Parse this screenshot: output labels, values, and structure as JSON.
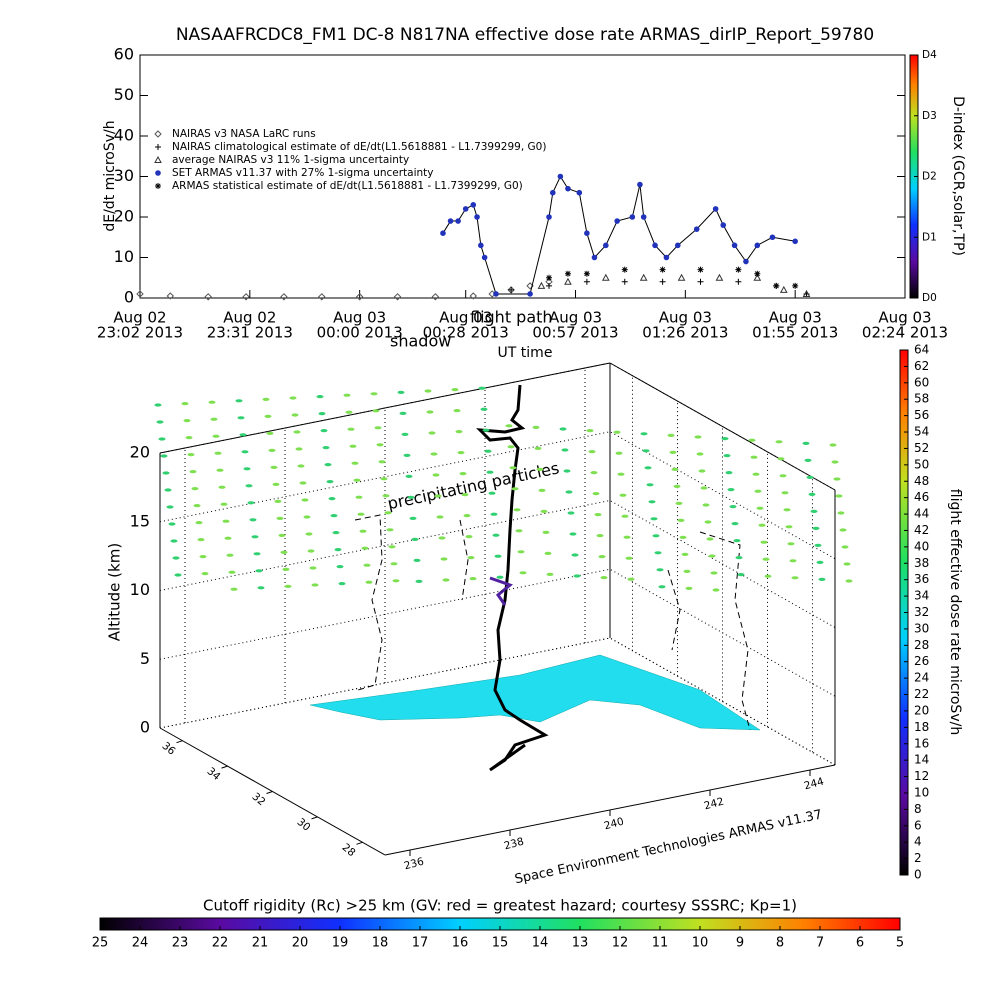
{
  "chart_data": [
    {
      "type": "line",
      "title": "NASAAFRCDC8_FM1 DC-8   N817NA effective dose rate ARMAS_dirIP_Report_59780",
      "ylabel": "dE/dt microSv/h",
      "xlabel": "UT time",
      "xlim": [
        "2013-08-02 23:02",
        "2013-08-03 02:24"
      ],
      "xticks": [
        {
          "value": "2013-08-02 23:02",
          "label": [
            "Aug 02",
            "23:02 2013"
          ]
        },
        {
          "value": "2013-08-02 23:31",
          "label": [
            "Aug 02",
            "23:31 2013"
          ]
        },
        {
          "value": "2013-08-03 00:00",
          "label": [
            "Aug 03",
            "00:00 2013"
          ]
        },
        {
          "value": "2013-08-03 00:28",
          "label": [
            "Aug 03",
            "00:28 2013"
          ]
        },
        {
          "value": "2013-08-03 00:57",
          "label": [
            "Aug 03",
            "00:57 2013"
          ]
        },
        {
          "value": "2013-08-03 01:26",
          "label": [
            "Aug 03",
            "01:26 2013"
          ]
        },
        {
          "value": "2013-08-03 01:55",
          "label": [
            "Aug 03",
            "01:55 2013"
          ]
        },
        {
          "value": "2013-08-03 02:24",
          "label": [
            "Aug 03",
            "02:24 2013"
          ]
        }
      ],
      "ylim": [
        0,
        60
      ],
      "yticks": [
        0,
        10,
        20,
        30,
        40,
        50,
        60
      ],
      "series": [
        {
          "name": "NAIRAS v3 NASA LaRC runs",
          "marker": "diamond",
          "color": "#555555",
          "x": [
            "2013-08-02 23:02",
            "2013-08-02 23:10",
            "2013-08-02 23:20",
            "2013-08-02 23:30",
            "2013-08-02 23:40",
            "2013-08-02 23:50",
            "2013-08-03 00:00",
            "2013-08-03 00:10",
            "2013-08-03 00:20",
            "2013-08-03 00:30",
            "2013-08-03 00:35",
            "2013-08-03 00:40",
            "2013-08-03 00:45",
            "2013-08-03 00:50"
          ],
          "values": [
            1,
            0.5,
            0.3,
            0.3,
            0.3,
            0.3,
            0.3,
            0.3,
            0.3,
            0.5,
            1,
            2,
            3,
            4
          ]
        },
        {
          "name": "NAIRAS climatological estimate of dE/dt(L1.5618881 - L1.7399299, G0)",
          "marker": "plus",
          "color": "#000000",
          "x": [
            "2013-08-03 00:40",
            "2013-08-03 00:50",
            "2013-08-03 01:00",
            "2013-08-03 01:10",
            "2013-08-03 01:20",
            "2013-08-03 01:30",
            "2013-08-03 01:40",
            "2013-08-03 01:50",
            "2013-08-03 01:58"
          ],
          "values": [
            2,
            3,
            4,
            4,
            4,
            4,
            4,
            3,
            1
          ]
        },
        {
          "name": "average NAIRAS v3 11% 1-sigma uncertainty",
          "marker": "triangle",
          "color": "#333333",
          "x": [
            "2013-08-03 00:48",
            "2013-08-03 00:55",
            "2013-08-03 01:05",
            "2013-08-03 01:15",
            "2013-08-03 01:25",
            "2013-08-03 01:35",
            "2013-08-03 01:45",
            "2013-08-03 01:52",
            "2013-08-03 01:58"
          ],
          "values": [
            3,
            4,
            5,
            5,
            5,
            5,
            5,
            2,
            1
          ]
        },
        {
          "name": "SET ARMAS v11.37 with 27% 1-sigma uncertainty",
          "marker": "dot",
          "color": "#2233bb",
          "x": [
            "2013-08-03 00:22",
            "2013-08-03 00:24",
            "2013-08-03 00:26",
            "2013-08-03 00:28",
            "2013-08-03 00:30",
            "2013-08-03 00:31",
            "2013-08-03 00:32",
            "2013-08-03 00:33",
            "2013-08-03 00:36",
            "2013-08-03 00:45",
            "2013-08-03 00:50",
            "2013-08-03 00:51",
            "2013-08-03 00:53",
            "2013-08-03 00:55",
            "2013-08-03 00:58",
            "2013-08-03 01:00",
            "2013-08-03 01:02",
            "2013-08-03 01:05",
            "2013-08-03 01:08",
            "2013-08-03 01:12",
            "2013-08-03 01:14",
            "2013-08-03 01:15",
            "2013-08-03 01:18",
            "2013-08-03 01:21",
            "2013-08-03 01:24",
            "2013-08-03 01:29",
            "2013-08-03 01:34",
            "2013-08-03 01:36",
            "2013-08-03 01:39",
            "2013-08-03 01:42",
            "2013-08-03 01:45",
            "2013-08-03 01:49",
            "2013-08-03 01:55"
          ],
          "values": [
            16,
            19,
            19,
            22,
            23,
            20,
            13,
            10,
            1,
            1,
            20,
            26,
            30,
            27,
            26,
            16,
            10,
            13,
            19,
            20,
            28,
            20,
            13,
            10,
            13,
            17,
            22,
            18,
            13,
            9,
            13,
            15,
            14
          ]
        },
        {
          "name": "ARMAS statistical estimate of dE/dt(L1.5618881 - L1.7399299, G0)",
          "marker": "asterisk",
          "color": "#000000",
          "x": [
            "2013-08-03 00:50",
            "2013-08-03 00:55",
            "2013-08-03 01:00",
            "2013-08-03 01:10",
            "2013-08-03 01:20",
            "2013-08-03 01:30",
            "2013-08-03 01:40",
            "2013-08-03 01:45",
            "2013-08-03 01:50",
            "2013-08-03 01:55"
          ],
          "values": [
            5,
            6,
            6,
            7,
            7,
            7,
            7,
            6,
            3,
            3
          ]
        }
      ],
      "colorbar": {
        "label": "D-index (GCR,solar,TP)",
        "lim": [
          0,
          4
        ],
        "ticks": [
          {
            "value": 0,
            "label": "D0"
          },
          {
            "value": 1,
            "label": "D1"
          },
          {
            "value": 2,
            "label": "D2"
          },
          {
            "value": 3,
            "label": "D3"
          },
          {
            "value": 4,
            "label": "D4"
          }
        ]
      }
    },
    {
      "type": "3d",
      "zlabel": "Altitude (km)",
      "zlim": [
        0,
        20
      ],
      "zticks": [
        0,
        5,
        10,
        15,
        20
      ],
      "latlim": [
        37,
        27
      ],
      "latticks": [
        36,
        34,
        32,
        30,
        28
      ],
      "lonlim": [
        235.5,
        244.5
      ],
      "lonticks": [
        236,
        238,
        240,
        242,
        244
      ],
      "annotations": [
        "precipitating particles",
        "shadow",
        "flight path"
      ],
      "caption": "Space Environment Technologies ARMAS v11.37",
      "colorbar": {
        "label": "flight effective dose rate microSv/h",
        "lim": [
          0,
          64
        ],
        "ticks": [
          0,
          2,
          4,
          6,
          8,
          10,
          12,
          14,
          16,
          18,
          20,
          22,
          24,
          26,
          28,
          30,
          32,
          34,
          36,
          38,
          40,
          42,
          44,
          46,
          48,
          50,
          52,
          54,
          56,
          58,
          60,
          62,
          64
        ]
      }
    },
    {
      "type": "colorbar",
      "title": "Cutoff rigidity (Rc) >25 km (GV: red = greatest hazard; courtesy SSSRC; Kp=1)",
      "lim": [
        25,
        5
      ],
      "ticks": [
        25,
        24,
        23,
        22,
        21,
        20,
        19,
        18,
        17,
        16,
        15,
        14,
        13,
        12,
        11,
        10,
        9,
        8,
        7,
        6,
        5
      ]
    }
  ]
}
